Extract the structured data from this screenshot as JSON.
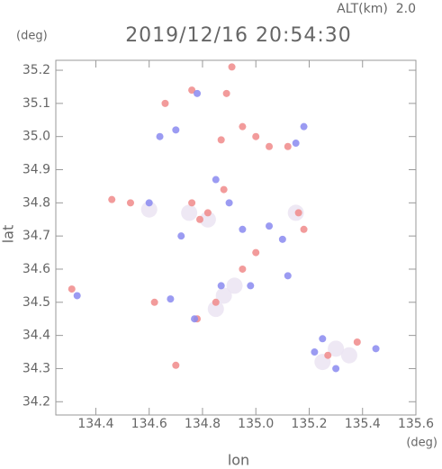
{
  "chart_data": {
    "type": "scatter",
    "title": "2019/12/16 20:54:30",
    "subtitle": "ALT(km)  2.0",
    "y_unit": "(deg)",
    "x_unit": "(deg)",
    "y_label": "lat",
    "x_label": "lon",
    "xlim": [
      134.25,
      135.6
    ],
    "ylim": [
      34.16,
      35.23
    ],
    "xticks": [
      134.4,
      134.6,
      134.8,
      {
        "value": 135,
        "label": "135.0"
      },
      135.2,
      135.4,
      135.6
    ],
    "yticks": [
      34.2,
      34.3,
      34.4,
      34.5,
      34.6,
      34.7,
      34.8,
      34.9,
      {
        "value": 35,
        "label": "35.0"
      },
      35.1,
      35.2
    ],
    "series": [
      {
        "color": "#ebe4f2",
        "x": [
          134.75,
          134.82,
          134.92,
          134.85,
          135.3,
          135.25,
          134.6,
          135.15,
          134.88,
          135.35
        ],
        "values": [
          34.77,
          34.75,
          34.55,
          34.48,
          34.36,
          34.32,
          34.78,
          34.77,
          34.52,
          34.34
        ]
      },
      {
        "color": "#f08a8a",
        "x": [
          134.91,
          134.76,
          134.89,
          134.66,
          134.95,
          135.0,
          135.05,
          134.87,
          134.53,
          134.76,
          134.82,
          134.79,
          135.16,
          135.18,
          135.0,
          134.95,
          134.85,
          134.78,
          134.31,
          134.62,
          134.7,
          135.27,
          135.38,
          135.12,
          134.46,
          134.88
        ],
        "values": [
          35.21,
          35.14,
          35.13,
          35.1,
          35.03,
          35.0,
          34.97,
          34.99,
          34.8,
          34.8,
          34.77,
          34.75,
          34.77,
          34.72,
          34.65,
          34.6,
          34.5,
          34.45,
          34.54,
          34.5,
          34.31,
          34.34,
          34.38,
          34.97,
          34.81,
          34.84
        ]
      },
      {
        "color": "#8a8af0",
        "x": [
          134.78,
          134.64,
          134.7,
          135.15,
          135.18,
          134.85,
          134.9,
          134.95,
          135.05,
          135.1,
          134.98,
          135.12,
          134.87,
          134.77,
          135.25,
          135.45,
          135.22,
          134.6,
          134.72,
          134.68,
          135.3,
          134.33
        ],
        "values": [
          35.13,
          35.0,
          35.02,
          34.98,
          35.03,
          34.87,
          34.8,
          34.72,
          34.73,
          34.69,
          34.55,
          34.58,
          34.55,
          34.45,
          34.39,
          34.36,
          34.35,
          34.8,
          34.7,
          34.51,
          34.3,
          34.52
        ]
      }
    ]
  }
}
